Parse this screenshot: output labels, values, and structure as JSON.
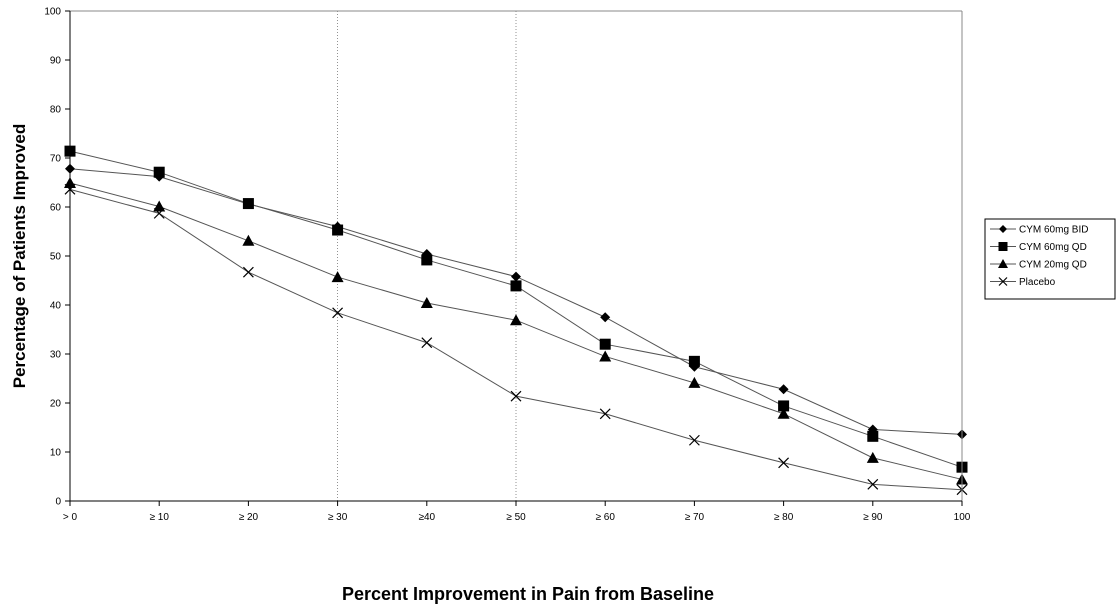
{
  "chart_data": {
    "type": "line",
    "title": "",
    "xlabel": "Percent Improvement in Pain from Baseline",
    "ylabel": "Percentage of Patients Improved",
    "categories": [
      "> 0",
      "≥ 10",
      "≥ 20",
      "≥ 30",
      "≥40",
      "≥ 50",
      "≥ 60",
      "≥ 70",
      "≥ 80",
      "≥ 90",
      "100"
    ],
    "ylim": [
      0,
      100
    ],
    "yticks": [
      "0",
      "10",
      "20",
      "30",
      "40",
      "50",
      "60",
      "70",
      "80",
      "90",
      "100"
    ],
    "grid": false,
    "reference_lines_at": [
      "≥ 30",
      "≥ 50"
    ],
    "legend_position": "right",
    "series": [
      {
        "name": "CYM 60mg BID",
        "marker": "diamond",
        "color": "#555555",
        "values": [
          67.8,
          66.2,
          60.6,
          56.0,
          50.4,
          45.8,
          37.5,
          27.4,
          22.8,
          14.6,
          13.6
        ]
      },
      {
        "name": "CYM 60mg QD",
        "marker": "square",
        "color": "#555555",
        "values": [
          71.4,
          67.1,
          60.7,
          55.3,
          49.2,
          43.9,
          32.0,
          28.5,
          19.4,
          13.2,
          6.9
        ]
      },
      {
        "name": "CYM 20mg QD",
        "marker": "triangle",
        "color": "#555555",
        "values": [
          64.9,
          60.1,
          53.1,
          45.7,
          40.4,
          36.9,
          29.5,
          24.1,
          17.8,
          8.8,
          4.4
        ]
      },
      {
        "name": "Placebo",
        "marker": "x",
        "color": "#555555",
        "values": [
          63.6,
          58.7,
          46.7,
          38.4,
          32.3,
          21.4,
          17.8,
          12.4,
          7.8,
          3.4,
          2.3
        ]
      }
    ]
  }
}
